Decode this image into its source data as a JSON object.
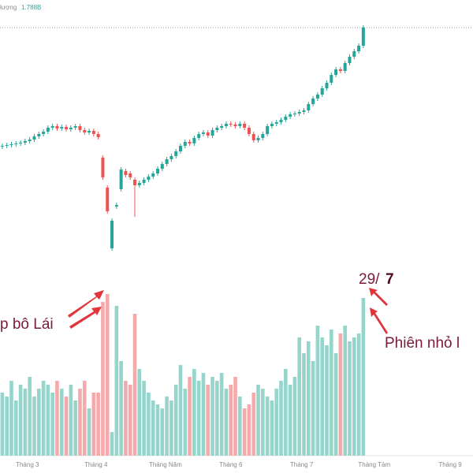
{
  "chart_data": {
    "type": "candlestick",
    "volume_title": "lượng",
    "volume_value_label": "1.788B",
    "annotations": {
      "left": "p bô Lái",
      "date_day": "29/",
      "date_month": "7",
      "right": "Phiên nhỏ l"
    },
    "up_color": "#26a69a",
    "down_color": "#ef5350",
    "volume_up_color": "#95d5cb",
    "volume_down_color": "#f5a9aa",
    "xlim": [
      -0.5,
      103
    ],
    "xticks": [
      {
        "value": 5.5,
        "label": "Tháng 3"
      },
      {
        "value": 20.5,
        "label": "Tháng 4"
      },
      {
        "value": 35.7,
        "label": "Tháng Năm"
      },
      {
        "value": 50,
        "label": "Tháng 6"
      },
      {
        "value": 65.5,
        "label": "Tháng 7"
      },
      {
        "value": 81.4,
        "label": "Tháng Tám"
      },
      {
        "value": 98,
        "label": "Tháng 9"
      }
    ],
    "ylim": [
      0,
      285
    ],
    "volume_ylim": [
      0,
      220
    ],
    "open": [
      134,
      135,
      136,
      137,
      138,
      139,
      141,
      143,
      147,
      150,
      153,
      158,
      160,
      157,
      159,
      156,
      158,
      160,
      155,
      152,
      154,
      150,
      120,
      82,
      5,
      58,
      80,
      103,
      100,
      92,
      85,
      88,
      92,
      96,
      100,
      106,
      112,
      118,
      122,
      128,
      135,
      140,
      138,
      145,
      150,
      152,
      148,
      155,
      158,
      160,
      163,
      162,
      160,
      163,
      158,
      150,
      142,
      145,
      150,
      160,
      163,
      165,
      168,
      172,
      175,
      176,
      178,
      180,
      188,
      195,
      200,
      208,
      215,
      225,
      232,
      230,
      240,
      248,
      255,
      262
    ],
    "high": [
      138,
      139,
      140,
      141,
      142,
      144,
      146,
      150,
      153,
      156,
      161,
      163,
      163,
      162,
      162,
      161,
      163,
      163,
      158,
      157,
      157,
      153,
      123,
      85,
      43,
      63,
      108,
      106,
      103,
      95,
      91,
      95,
      99,
      103,
      109,
      115,
      121,
      125,
      131,
      138,
      143,
      143,
      148,
      153,
      155,
      155,
      158,
      161,
      163,
      166,
      166,
      165,
      166,
      166,
      161,
      153,
      148,
      153,
      163,
      166,
      168,
      171,
      175,
      178,
      179,
      181,
      183,
      191,
      198,
      203,
      211,
      218,
      228,
      235,
      235,
      243,
      251,
      258,
      265,
      288
    ],
    "low": [
      131,
      132,
      133,
      134,
      135,
      136,
      138,
      140,
      144,
      147,
      150,
      155,
      154,
      154,
      153,
      153,
      155,
      152,
      149,
      149,
      147,
      143,
      92,
      49,
      2,
      55,
      77,
      95,
      92,
      45,
      82,
      85,
      89,
      93,
      97,
      103,
      109,
      115,
      119,
      125,
      132,
      135,
      135,
      142,
      147,
      145,
      145,
      152,
      155,
      157,
      159,
      157,
      157,
      155,
      147,
      139,
      139,
      142,
      147,
      157,
      160,
      162,
      165,
      169,
      172,
      173,
      175,
      177,
      185,
      192,
      197,
      205,
      212,
      222,
      227,
      227,
      237,
      245,
      252,
      259
    ],
    "close": [
      135,
      136,
      137,
      138,
      139,
      141,
      143,
      147,
      150,
      153,
      158,
      160,
      157,
      159,
      156,
      158,
      160,
      155,
      152,
      154,
      150,
      146,
      95,
      52,
      40,
      60,
      105,
      98,
      95,
      85,
      88,
      92,
      96,
      100,
      106,
      112,
      118,
      122,
      128,
      135,
      140,
      138,
      145,
      150,
      152,
      148,
      155,
      158,
      160,
      163,
      162,
      160,
      163,
      158,
      150,
      142,
      145,
      150,
      160,
      163,
      165,
      168,
      172,
      175,
      176,
      178,
      180,
      188,
      195,
      200,
      208,
      215,
      225,
      232,
      230,
      240,
      248,
      255,
      262,
      285
    ],
    "volume": [
      80,
      75,
      95,
      70,
      90,
      85,
      100,
      75,
      85,
      95,
      90,
      80,
      95,
      85,
      75,
      90,
      70,
      85,
      95,
      60,
      80,
      80,
      195,
      205,
      30,
      190,
      120,
      95,
      90,
      180,
      110,
      95,
      80,
      70,
      65,
      60,
      75,
      70,
      90,
      115,
      85,
      100,
      110,
      95,
      105,
      90,
      100,
      95,
      105,
      85,
      90,
      100,
      75,
      60,
      65,
      80,
      90,
      85,
      75,
      70,
      85,
      95,
      110,
      90,
      100,
      150,
      130,
      145,
      120,
      165,
      150,
      140,
      160,
      130,
      155,
      165,
      145,
      150,
      155,
      200
    ]
  }
}
